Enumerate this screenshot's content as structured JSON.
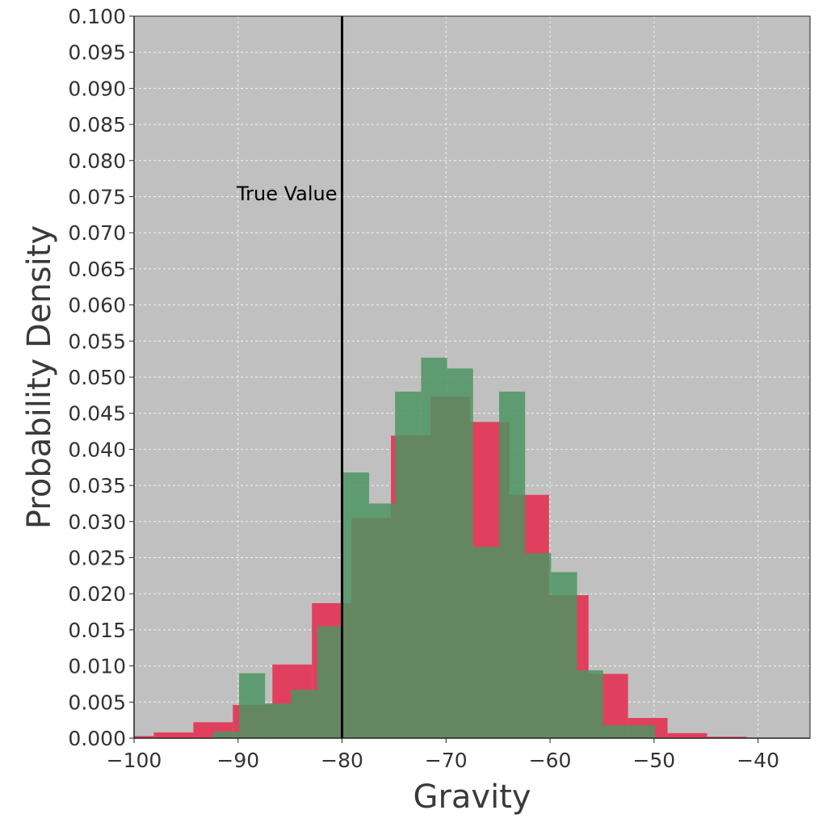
{
  "chart_data": {
    "type": "bar",
    "title": "",
    "xlabel": "Gravity",
    "ylabel": "Probability Density",
    "xlim": [
      -100,
      -35
    ],
    "ylim": [
      0,
      0.1
    ],
    "grid": true,
    "background_color": "#c0c0c0",
    "x_tick_labels": [
      "−100",
      "−90",
      "−80",
      "−70",
      "−60",
      "−50",
      "−40"
    ],
    "x_tick_values": [
      -100,
      -90,
      -80,
      -70,
      -60,
      -50,
      -40
    ],
    "y_tick_labels": [
      "0.000",
      "0.005",
      "0.010",
      "0.015",
      "0.020",
      "0.025",
      "0.030",
      "0.035",
      "0.040",
      "0.045",
      "0.050",
      "0.055",
      "0.060",
      "0.065",
      "0.070",
      "0.075",
      "0.080",
      "0.085",
      "0.090",
      "0.095",
      "0.100"
    ],
    "y_tick_values": [
      0,
      0.005,
      0.01,
      0.015,
      0.02,
      0.025,
      0.03,
      0.035,
      0.04,
      0.045,
      0.05,
      0.055,
      0.06,
      0.065,
      0.07,
      0.075,
      0.08,
      0.085,
      0.09,
      0.095,
      0.1
    ],
    "series": [
      {
        "color": "#e0405e",
        "bins": [
          {
            "x0": -100.0,
            "x1": -98.1,
            "value": 0.0003
          },
          {
            "x0": -98.1,
            "x1": -94.3,
            "value": 0.0008
          },
          {
            "x0": -94.3,
            "x1": -90.5,
            "value": 0.0022
          },
          {
            "x0": -90.5,
            "x1": -86.7,
            "value": 0.0046
          },
          {
            "x0": -86.7,
            "x1": -82.9,
            "value": 0.0102
          },
          {
            "x0": -82.9,
            "x1": -79.1,
            "value": 0.0187
          },
          {
            "x0": -79.1,
            "x1": -75.3,
            "value": 0.0305
          },
          {
            "x0": -75.3,
            "x1": -71.5,
            "value": 0.0419
          },
          {
            "x0": -71.5,
            "x1": -67.7,
            "value": 0.0473
          },
          {
            "x0": -67.7,
            "x1": -63.9,
            "value": 0.0438
          },
          {
            "x0": -63.9,
            "x1": -60.1,
            "value": 0.0337
          },
          {
            "x0": -60.1,
            "x1": -56.3,
            "value": 0.0198
          },
          {
            "x0": -56.3,
            "x1": -52.5,
            "value": 0.0089
          },
          {
            "x0": -52.5,
            "x1": -48.7,
            "value": 0.0028
          },
          {
            "x0": -48.7,
            "x1": -44.9,
            "value": 0.0007
          },
          {
            "x0": -44.9,
            "x1": -41.1,
            "value": 0.0002
          }
        ]
      },
      {
        "color": "#4e9462",
        "bins": [
          {
            "x0": -92.4,
            "x1": -89.9,
            "value": 0.0009
          },
          {
            "x0": -89.9,
            "x1": -87.4,
            "value": 0.009
          },
          {
            "x0": -87.4,
            "x1": -84.9,
            "value": 0.0048
          },
          {
            "x0": -84.9,
            "x1": -82.4,
            "value": 0.0067
          },
          {
            "x0": -82.4,
            "x1": -79.9,
            "value": 0.0155
          },
          {
            "x0": -79.9,
            "x1": -77.4,
            "value": 0.0368
          },
          {
            "x0": -77.4,
            "x1": -74.9,
            "value": 0.0325
          },
          {
            "x0": -74.9,
            "x1": -72.4,
            "value": 0.048
          },
          {
            "x0": -72.4,
            "x1": -69.9,
            "value": 0.0527
          },
          {
            "x0": -69.9,
            "x1": -67.4,
            "value": 0.0512
          },
          {
            "x0": -67.4,
            "x1": -64.9,
            "value": 0.0265
          },
          {
            "x0": -64.9,
            "x1": -62.4,
            "value": 0.048
          },
          {
            "x0": -62.4,
            "x1": -59.9,
            "value": 0.0256
          },
          {
            "x0": -59.9,
            "x1": -57.4,
            "value": 0.023
          },
          {
            "x0": -57.4,
            "x1": -54.9,
            "value": 0.0094
          },
          {
            "x0": -54.9,
            "x1": -52.4,
            "value": 0.0018
          },
          {
            "x0": -52.4,
            "x1": -49.9,
            "value": 0.0018
          }
        ]
      }
    ],
    "annotations": [
      {
        "type": "vline",
        "x": -80,
        "color": "#000000",
        "label": "True Value"
      }
    ]
  }
}
